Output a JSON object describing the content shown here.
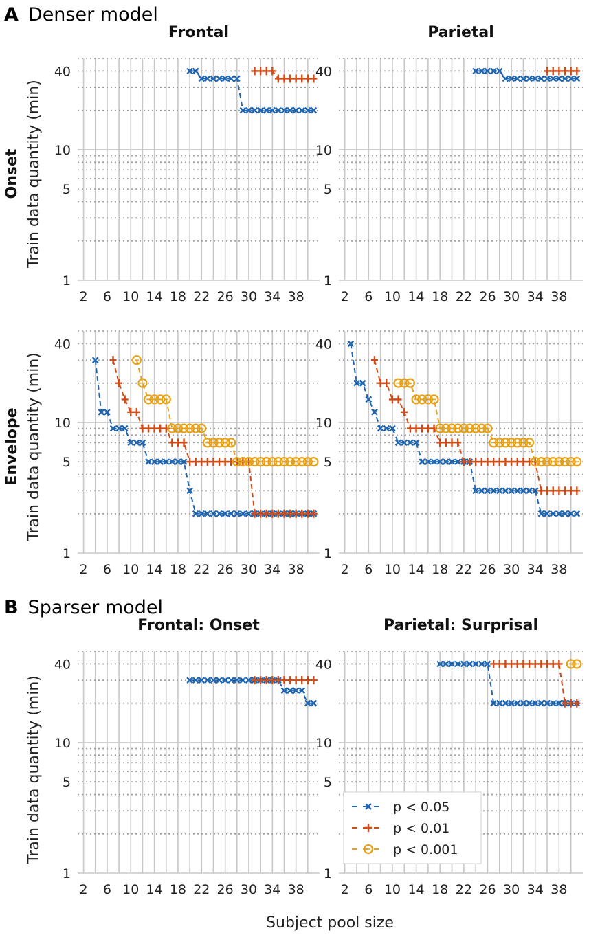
{
  "figure": {
    "section_a": {
      "letter": "A",
      "title": "Denser model"
    },
    "section_b": {
      "letter": "B",
      "title": "Sparser model"
    },
    "row_labels": {
      "onset": "Onset",
      "envelope": "Envelope"
    },
    "ylabel": "Train data quantity (min)",
    "xlabel": "Subject pool size",
    "legend": [
      {
        "label": "p < 0.05",
        "color": "#2166b0",
        "marker": "x-mark-icon"
      },
      {
        "label": "p < 0.01",
        "color": "#d24a16",
        "marker": "plus-mark-icon"
      },
      {
        "label": "p < 0.001",
        "color": "#e6a118",
        "marker": "circle-mark-icon"
      }
    ]
  },
  "chart_data": [
    {
      "id": "a-frontal-onset",
      "type": "line",
      "title": "Frontal",
      "row": "Onset",
      "xlabel": "",
      "ylabel": "Train data quantity (min)",
      "xlim": [
        1,
        42
      ],
      "ylim": [
        1,
        50
      ],
      "yscale": "log",
      "xticks": [
        2,
        6,
        10,
        14,
        18,
        22,
        26,
        30,
        34,
        38
      ],
      "yticks": [
        1,
        5,
        10,
        40
      ],
      "series": [
        {
          "name": "p < 0.05",
          "x": [
            20,
            21,
            22,
            23,
            24,
            25,
            26,
            27,
            28,
            29,
            30,
            31,
            32,
            33,
            34,
            35,
            36,
            37,
            38,
            39,
            40,
            41
          ],
          "y": [
            40,
            40,
            35,
            35,
            35,
            35,
            35,
            35,
            35,
            20,
            20,
            20,
            20,
            20,
            20,
            20,
            20,
            20,
            20,
            20,
            20,
            20
          ]
        },
        {
          "name": "p < 0.01",
          "x": [
            31,
            32,
            33,
            34,
            35,
            36,
            37,
            38,
            39,
            40,
            41
          ],
          "y": [
            40,
            40,
            40,
            40,
            35,
            35,
            35,
            35,
            35,
            35,
            35
          ]
        }
      ]
    },
    {
      "id": "a-parietal-onset",
      "type": "line",
      "title": "Parietal",
      "row": "Onset",
      "xlabel": "",
      "ylabel": "",
      "xlim": [
        1,
        42
      ],
      "ylim": [
        1,
        50
      ],
      "yscale": "log",
      "xticks": [
        2,
        6,
        10,
        14,
        18,
        22,
        26,
        30,
        34,
        38
      ],
      "yticks": [
        1,
        5,
        10,
        40
      ],
      "series": [
        {
          "name": "p < 0.05",
          "x": [
            24,
            25,
            26,
            27,
            28,
            29,
            30,
            31,
            32,
            33,
            34,
            35,
            36,
            37,
            38,
            39,
            40,
            41
          ],
          "y": [
            40,
            40,
            40,
            40,
            40,
            35,
            35,
            35,
            35,
            35,
            35,
            35,
            35,
            35,
            35,
            35,
            35,
            35
          ]
        },
        {
          "name": "p < 0.01",
          "x": [
            36,
            37,
            38,
            39,
            40,
            41
          ],
          "y": [
            40,
            40,
            40,
            40,
            40,
            40
          ]
        }
      ]
    },
    {
      "id": "a-frontal-envelope",
      "type": "line",
      "title": "",
      "row": "Envelope",
      "xlabel": "",
      "ylabel": "Train data quantity (min)",
      "xlim": [
        1,
        42
      ],
      "ylim": [
        1,
        50
      ],
      "yscale": "log",
      "xticks": [
        2,
        6,
        10,
        14,
        18,
        22,
        26,
        30,
        34,
        38
      ],
      "yticks": [
        1,
        5,
        10,
        40
      ],
      "series": [
        {
          "name": "p < 0.05",
          "x": [
            4,
            5,
            6,
            7,
            8,
            9,
            10,
            11,
            12,
            13,
            14,
            15,
            16,
            17,
            18,
            19,
            20,
            21,
            22,
            23,
            24,
            25,
            26,
            27,
            28,
            29,
            30,
            31,
            32,
            33,
            34,
            35,
            36,
            37,
            38,
            39,
            40,
            41
          ],
          "y": [
            30,
            12,
            12,
            9,
            9,
            9,
            7,
            7,
            7,
            5,
            5,
            5,
            5,
            5,
            5,
            5,
            3,
            2,
            2,
            2,
            2,
            2,
            2,
            2,
            2,
            2,
            2,
            2,
            2,
            2,
            2,
            2,
            2,
            2,
            2,
            2,
            2,
            2
          ]
        },
        {
          "name": "p < 0.01",
          "x": [
            7,
            8,
            9,
            10,
            11,
            12,
            13,
            14,
            15,
            16,
            17,
            18,
            19,
            20,
            21,
            22,
            23,
            24,
            25,
            26,
            27,
            28,
            29,
            30,
            31,
            32,
            33,
            34,
            35,
            36,
            37,
            38,
            39,
            40,
            41
          ],
          "y": [
            30,
            20,
            15,
            12,
            12,
            9,
            9,
            9,
            9,
            9,
            7,
            7,
            7,
            5,
            5,
            5,
            5,
            5,
            5,
            5,
            5,
            5,
            5,
            5,
            2,
            2,
            2,
            2,
            2,
            2,
            2,
            2,
            2,
            2,
            2
          ]
        },
        {
          "name": "p < 0.001",
          "x": [
            11,
            12,
            13,
            14,
            15,
            16,
            17,
            18,
            19,
            20,
            21,
            22,
            23,
            24,
            25,
            26,
            27,
            28,
            29,
            30,
            31,
            32,
            33,
            34,
            35,
            36,
            37,
            38,
            39,
            40,
            41
          ],
          "y": [
            30,
            20,
            15,
            15,
            15,
            15,
            9,
            9,
            9,
            9,
            9,
            9,
            7,
            7,
            7,
            7,
            7,
            5,
            5,
            5,
            5,
            5,
            5,
            5,
            5,
            5,
            5,
            5,
            5,
            5,
            5
          ]
        }
      ]
    },
    {
      "id": "a-parietal-envelope",
      "type": "line",
      "title": "",
      "row": "Envelope",
      "xlabel": "",
      "ylabel": "",
      "xlim": [
        1,
        42
      ],
      "ylim": [
        1,
        50
      ],
      "yscale": "log",
      "xticks": [
        2,
        6,
        10,
        14,
        18,
        22,
        26,
        30,
        34,
        38
      ],
      "yticks": [
        1,
        5,
        10,
        40
      ],
      "series": [
        {
          "name": "p < 0.05",
          "x": [
            3,
            4,
            5,
            6,
            7,
            8,
            9,
            10,
            11,
            12,
            13,
            14,
            15,
            16,
            17,
            18,
            19,
            20,
            21,
            22,
            23,
            24,
            25,
            26,
            27,
            28,
            29,
            30,
            31,
            32,
            33,
            34,
            35,
            36,
            37,
            38,
            39,
            40,
            41
          ],
          "y": [
            40,
            20,
            20,
            15,
            12,
            9,
            9,
            9,
            7,
            7,
            7,
            7,
            5,
            5,
            5,
            5,
            5,
            5,
            5,
            5,
            5,
            3,
            3,
            3,
            3,
            3,
            3,
            3,
            3,
            3,
            3,
            3,
            2,
            2,
            2,
            2,
            2,
            2,
            2
          ]
        },
        {
          "name": "p < 0.01",
          "x": [
            7,
            8,
            9,
            10,
            11,
            12,
            13,
            14,
            15,
            16,
            17,
            18,
            19,
            20,
            21,
            22,
            23,
            24,
            25,
            26,
            27,
            28,
            29,
            30,
            31,
            32,
            33,
            34,
            35,
            36,
            37,
            38,
            39,
            40,
            41
          ],
          "y": [
            30,
            20,
            20,
            15,
            15,
            12,
            9,
            9,
            9,
            9,
            9,
            7,
            7,
            7,
            7,
            5,
            5,
            5,
            5,
            5,
            5,
            5,
            5,
            5,
            5,
            5,
            5,
            5,
            3,
            3,
            3,
            3,
            3,
            3,
            3
          ]
        },
        {
          "name": "p < 0.001",
          "x": [
            11,
            12,
            13,
            14,
            15,
            16,
            17,
            18,
            19,
            20,
            21,
            22,
            23,
            24,
            25,
            26,
            27,
            28,
            29,
            30,
            31,
            32,
            33,
            34,
            35,
            36,
            37,
            38,
            39,
            40,
            41
          ],
          "y": [
            20,
            20,
            20,
            15,
            15,
            15,
            15,
            9,
            9,
            9,
            9,
            9,
            9,
            9,
            9,
            9,
            7,
            7,
            7,
            7,
            7,
            7,
            7,
            5,
            5,
            5,
            5,
            5,
            5,
            5,
            5
          ]
        }
      ]
    },
    {
      "id": "b-frontal-onset",
      "type": "line",
      "title": "Frontal: Onset",
      "row": "",
      "xlabel": "",
      "ylabel": "Train data quantity (min)",
      "xlim": [
        1,
        42
      ],
      "ylim": [
        1,
        50
      ],
      "yscale": "log",
      "xticks": [
        2,
        6,
        10,
        14,
        18,
        22,
        26,
        30,
        34,
        38
      ],
      "yticks": [
        1,
        5,
        10,
        40
      ],
      "series": [
        {
          "name": "p < 0.05",
          "x": [
            20,
            21,
            22,
            23,
            24,
            25,
            26,
            27,
            28,
            29,
            30,
            31,
            32,
            33,
            34,
            35,
            36,
            37,
            38,
            39,
            40,
            41
          ],
          "y": [
            30,
            30,
            30,
            30,
            30,
            30,
            30,
            30,
            30,
            30,
            30,
            30,
            30,
            30,
            30,
            30,
            25,
            25,
            25,
            25,
            20,
            20
          ]
        },
        {
          "name": "p < 0.01",
          "x": [
            31,
            32,
            33,
            34,
            35,
            36,
            37,
            38,
            39,
            40,
            41
          ],
          "y": [
            30,
            30,
            30,
            30,
            30,
            30,
            30,
            30,
            30,
            30,
            30
          ]
        }
      ]
    },
    {
      "id": "b-parietal-surprisal",
      "type": "line",
      "title": "Parietal: Surprisal",
      "row": "",
      "xlabel": "",
      "ylabel": "",
      "xlim": [
        1,
        42
      ],
      "ylim": [
        1,
        50
      ],
      "yscale": "log",
      "xticks": [
        2,
        6,
        10,
        14,
        18,
        22,
        26,
        30,
        34,
        38
      ],
      "yticks": [
        1,
        5,
        10,
        40
      ],
      "series": [
        {
          "name": "p < 0.05",
          "x": [
            18,
            19,
            20,
            21,
            22,
            23,
            24,
            25,
            26,
            27,
            28,
            29,
            30,
            31,
            32,
            33,
            34,
            35,
            36,
            37,
            38,
            39,
            40,
            41
          ],
          "y": [
            40,
            40,
            40,
            40,
            40,
            40,
            40,
            40,
            40,
            20,
            20,
            20,
            20,
            20,
            20,
            20,
            20,
            20,
            20,
            20,
            20,
            20,
            20,
            20
          ]
        },
        {
          "name": "p < 0.01",
          "x": [
            27,
            28,
            29,
            30,
            31,
            32,
            33,
            34,
            35,
            36,
            37,
            38,
            39,
            40,
            41
          ],
          "y": [
            40,
            40,
            40,
            40,
            40,
            40,
            40,
            40,
            40,
            40,
            40,
            40,
            20,
            20,
            20
          ]
        },
        {
          "name": "p < 0.001",
          "x": [
            40,
            41
          ],
          "y": [
            40,
            40
          ]
        }
      ]
    }
  ]
}
